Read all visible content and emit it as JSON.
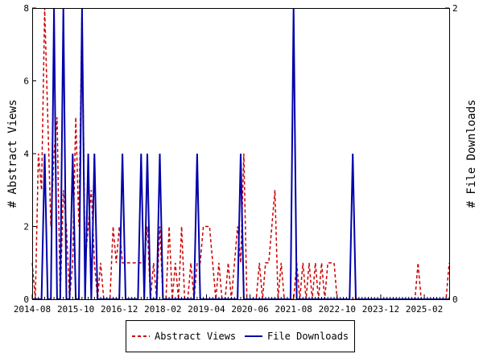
{
  "chart_data": {
    "type": "line",
    "title": "",
    "ylabel": "# Abstract Views",
    "y2label": "# File Downloads",
    "ylim": [
      0,
      8
    ],
    "y2lim": [
      0,
      2
    ],
    "yticks": [
      "0",
      "2",
      "4",
      "6",
      "8"
    ],
    "y2ticks": [
      "0",
      "2"
    ],
    "xlim": [
      "2014-08",
      "2025-10"
    ],
    "xticks": [
      "2014-08",
      "2015-10",
      "2016-12",
      "2018-02",
      "2019-04",
      "2020-06",
      "2021-08",
      "2022-10",
      "2023-12",
      "2025-02"
    ],
    "legend": "bottom",
    "grid": false,
    "series": [
      {
        "name": "Abstract Views",
        "color": "#cc0000",
        "style": "dashed",
        "axis": "left",
        "x": [
          "2014-08",
          "2014-09",
          "2014-10",
          "2014-11",
          "2014-12",
          "2015-01",
          "2015-02",
          "2015-03",
          "2015-04",
          "2015-05",
          "2015-06",
          "2015-07",
          "2015-08",
          "2015-09",
          "2015-10",
          "2015-11",
          "2015-12",
          "2016-01",
          "2016-02",
          "2016-03",
          "2016-04",
          "2016-05",
          "2016-06",
          "2016-07",
          "2016-08",
          "2016-09",
          "2016-10",
          "2016-11",
          "2016-12",
          "2017-01",
          "2017-02",
          "2017-03",
          "2017-04",
          "2017-05",
          "2017-06",
          "2017-07",
          "2017-08",
          "2017-09",
          "2017-10",
          "2017-11",
          "2017-12",
          "2018-01",
          "2018-02",
          "2018-03",
          "2018-04",
          "2018-05",
          "2018-06",
          "2018-07",
          "2018-08",
          "2018-09",
          "2018-10",
          "2018-11",
          "2018-12",
          "2019-01",
          "2019-02",
          "2019-03",
          "2019-04",
          "2019-05",
          "2019-06",
          "2019-07",
          "2019-08",
          "2019-09",
          "2019-10",
          "2019-11",
          "2019-12",
          "2020-01",
          "2020-02",
          "2020-03",
          "2020-04",
          "2020-05",
          "2020-06",
          "2020-07",
          "2020-08",
          "2020-09",
          "2020-10",
          "2020-11",
          "2020-12",
          "2021-01",
          "2021-02",
          "2021-03",
          "2021-04",
          "2021-05",
          "2021-06",
          "2021-07",
          "2021-08",
          "2021-09",
          "2021-10",
          "2021-11",
          "2021-12",
          "2022-01",
          "2022-02",
          "2022-03",
          "2022-04",
          "2022-05",
          "2022-06",
          "2022-07",
          "2022-08",
          "2022-09",
          "2022-10",
          "2022-11",
          "2022-12",
          "2023-01",
          "2023-02",
          "2023-03",
          "2023-04",
          "2023-05",
          "2023-06",
          "2023-07",
          "2023-08",
          "2023-09",
          "2023-10",
          "2023-11",
          "2023-12",
          "2024-01",
          "2024-02",
          "2024-03",
          "2024-04",
          "2024-05",
          "2024-06",
          "2024-07",
          "2024-08",
          "2024-09",
          "2024-10",
          "2024-11",
          "2024-12",
          "2025-01",
          "2025-02",
          "2025-03",
          "2025-04",
          "2025-05",
          "2025-06",
          "2025-07",
          "2025-08",
          "2025-09",
          "2025-10"
        ],
        "values": [
          1,
          0,
          4,
          3,
          8,
          5,
          2,
          4,
          5,
          0,
          3,
          2,
          0,
          1,
          5,
          2,
          8,
          1,
          2,
          3,
          1,
          0,
          1,
          0,
          0,
          0,
          2,
          1,
          2,
          1,
          1,
          1,
          1,
          1,
          1,
          1,
          1,
          2,
          0,
          1,
          0,
          2,
          0,
          0,
          2,
          0,
          1,
          0,
          2,
          0,
          0,
          1,
          0,
          1,
          1,
          2,
          2,
          2,
          1,
          0,
          1,
          0,
          0,
          1,
          0,
          1,
          2,
          1,
          4,
          0,
          0,
          0,
          0,
          1,
          0,
          1,
          1,
          2,
          3,
          0,
          1,
          0,
          0,
          0,
          0,
          1,
          0,
          1,
          0,
          1,
          0,
          1,
          0,
          1,
          0,
          1,
          1,
          1,
          0,
          0,
          0,
          0,
          0,
          0,
          0,
          0,
          0,
          0,
          0,
          0,
          0,
          0,
          0,
          0,
          0,
          0,
          0,
          0,
          0,
          0,
          0,
          0,
          0,
          0,
          1,
          0,
          0,
          0,
          0,
          0,
          0,
          0,
          0,
          0,
          1
        ],
        "_x_extra": []
      },
      {
        "name": "File Downloads",
        "color": "#0000aa",
        "style": "solid",
        "axis": "right",
        "x": [
          "2014-08",
          "2014-09",
          "2014-10",
          "2014-11",
          "2014-12",
          "2015-01",
          "2015-02",
          "2015-03",
          "2015-04",
          "2015-05",
          "2015-06",
          "2015-07",
          "2015-08",
          "2015-09",
          "2015-10",
          "2015-11",
          "2015-12",
          "2016-01",
          "2016-02",
          "2016-03",
          "2016-04",
          "2016-05",
          "2016-06",
          "2016-07",
          "2016-08",
          "2016-09",
          "2016-10",
          "2016-11",
          "2016-12",
          "2017-01",
          "2017-02",
          "2017-03",
          "2017-04",
          "2017-05",
          "2017-06",
          "2017-07",
          "2017-08",
          "2017-09",
          "2017-10",
          "2017-11",
          "2017-12",
          "2018-01",
          "2018-02",
          "2018-03",
          "2018-04",
          "2018-05",
          "2018-06",
          "2018-07",
          "2018-08",
          "2018-09",
          "2018-10",
          "2018-11",
          "2018-12",
          "2019-01",
          "2019-02",
          "2019-03",
          "2019-04",
          "2019-05",
          "2019-06",
          "2019-07",
          "2019-08",
          "2019-09",
          "2019-10",
          "2019-11",
          "2019-12",
          "2020-01",
          "2020-02",
          "2020-03",
          "2020-04",
          "2020-05",
          "2020-06",
          "2020-07",
          "2020-08",
          "2020-09",
          "2020-10",
          "2020-11",
          "2020-12",
          "2021-01",
          "2021-02",
          "2021-03",
          "2021-04",
          "2021-05",
          "2021-06",
          "2021-07",
          "2021-08",
          "2021-09",
          "2021-10",
          "2021-11",
          "2021-12",
          "2022-01",
          "2022-02",
          "2022-03",
          "2022-04",
          "2022-05",
          "2022-06",
          "2022-07",
          "2022-08",
          "2022-09",
          "2022-10",
          "2022-11",
          "2022-12",
          "2023-01",
          "2023-02",
          "2023-03",
          "2023-04",
          "2023-05",
          "2023-06",
          "2023-07",
          "2023-08",
          "2023-09",
          "2023-10",
          "2023-11",
          "2023-12",
          "2024-01",
          "2024-02",
          "2024-03",
          "2024-04",
          "2024-05",
          "2024-06",
          "2024-07",
          "2024-08",
          "2024-09",
          "2024-10",
          "2024-11",
          "2024-12",
          "2025-01",
          "2025-02",
          "2025-03",
          "2025-04",
          "2025-05",
          "2025-06",
          "2025-07",
          "2025-08",
          "2025-09",
          "2025-10"
        ],
        "values": [
          0,
          0,
          0,
          0,
          1,
          0,
          0,
          2,
          0,
          0,
          2,
          0,
          0,
          1,
          0,
          0,
          2,
          0,
          1,
          0,
          1,
          0,
          0,
          0,
          0,
          0,
          0,
          0,
          0,
          1,
          0,
          0,
          0,
          0,
          0,
          1,
          0,
          1,
          0,
          0,
          0,
          1,
          0,
          0,
          0,
          0,
          0,
          0,
          0,
          0,
          0,
          0,
          0,
          1,
          0,
          0,
          0,
          0,
          0,
          0,
          0,
          0,
          0,
          0,
          0,
          0,
          0,
          1,
          0,
          0,
          0,
          0,
          0,
          0,
          0,
          0,
          0,
          0,
          0,
          0,
          0,
          0,
          0,
          0,
          2,
          0,
          0,
          0,
          0,
          0,
          0,
          0,
          0,
          0,
          0,
          0,
          0,
          0,
          0,
          0,
          0,
          0,
          0,
          1,
          0,
          0,
          0,
          0,
          0,
          0,
          0,
          0,
          0,
          0,
          0,
          0,
          0,
          0,
          0,
          0,
          0,
          0,
          0,
          0,
          0,
          0,
          0,
          0,
          0,
          0,
          0,
          0,
          0,
          0,
          0
        ]
      }
    ]
  }
}
